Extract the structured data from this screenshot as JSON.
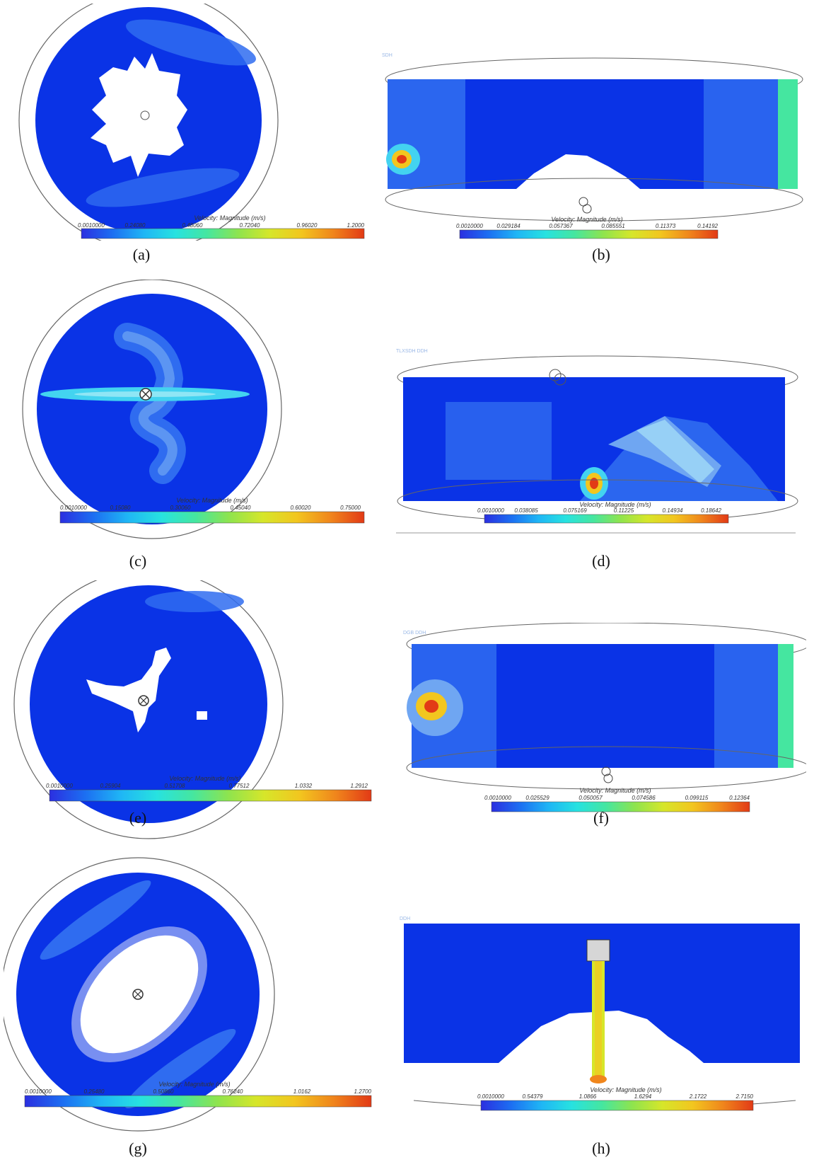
{
  "colors": {
    "field": "#0a33e6",
    "mid": "#2f6cf0",
    "light": "#6fa6f2",
    "cyan": "#43d3f0",
    "white": "#ffffff",
    "outline": "#555555"
  },
  "colormap": [
    "#2b2fe0",
    "#1c6ff2",
    "#1fb6f5",
    "#27e2e0",
    "#45e6a0",
    "#8ee44e",
    "#d6e62a",
    "#f2c61f",
    "#f0861c",
    "#e23a16"
  ],
  "panels": [
    {
      "caption": "(a)",
      "title": "Velocity: Magnitude (m/s)",
      "ticks": [
        "0.0010000",
        "0.24080",
        "0.48060",
        "0.72040",
        "0.96020",
        "1.2000"
      ]
    },
    {
      "caption": "(b)",
      "title": "Velocity: Magnitude (m/s)",
      "ticks": [
        "0.0010000",
        "0.029184",
        "0.057367",
        "0.085551",
        "0.11373",
        "0.14192"
      ],
      "tag": "SDH"
    },
    {
      "caption": "(c)",
      "title": "Velocity: Magnitude (m/s)",
      "ticks": [
        "0.0010000",
        "0.15080",
        "0.30060",
        "0.45040",
        "0.60020",
        "0.75000"
      ]
    },
    {
      "caption": "(d)",
      "title": "Velocity: Magnitude (m/s)",
      "ticks": [
        "0.0010000",
        "0.038085",
        "0.075169",
        "0.11225",
        "0.14934",
        "0.18642"
      ],
      "tag": "TLXSDH DDH"
    },
    {
      "caption": "(e)",
      "title": "Velocity: Magnitude (m/s)",
      "ticks": [
        "0.0010000",
        "0.25904",
        "0.51708",
        "0.77512",
        "1.0332",
        "1.2912"
      ]
    },
    {
      "caption": "(f)",
      "title": "Velocity: Magnitude (m/s)",
      "ticks": [
        "0.0010000",
        "0.025529",
        "0.050057",
        "0.074586",
        "0.099115",
        "0.12364"
      ],
      "tag": "DGB DDH"
    },
    {
      "caption": "(g)",
      "title": "Velocity: Magnitude (m/s)",
      "ticks": [
        "0.0010000",
        "0.25480",
        "0.50860",
        "0.76240",
        "1.0162",
        "1.2700"
      ]
    },
    {
      "caption": "(h)",
      "title": "Velocity: Magnitude (m/s)",
      "ticks": [
        "0.0010000",
        "0.54379",
        "1.0866",
        "1.6294",
        "2.1722",
        "2.7150"
      ],
      "tag": "DDH"
    }
  ]
}
